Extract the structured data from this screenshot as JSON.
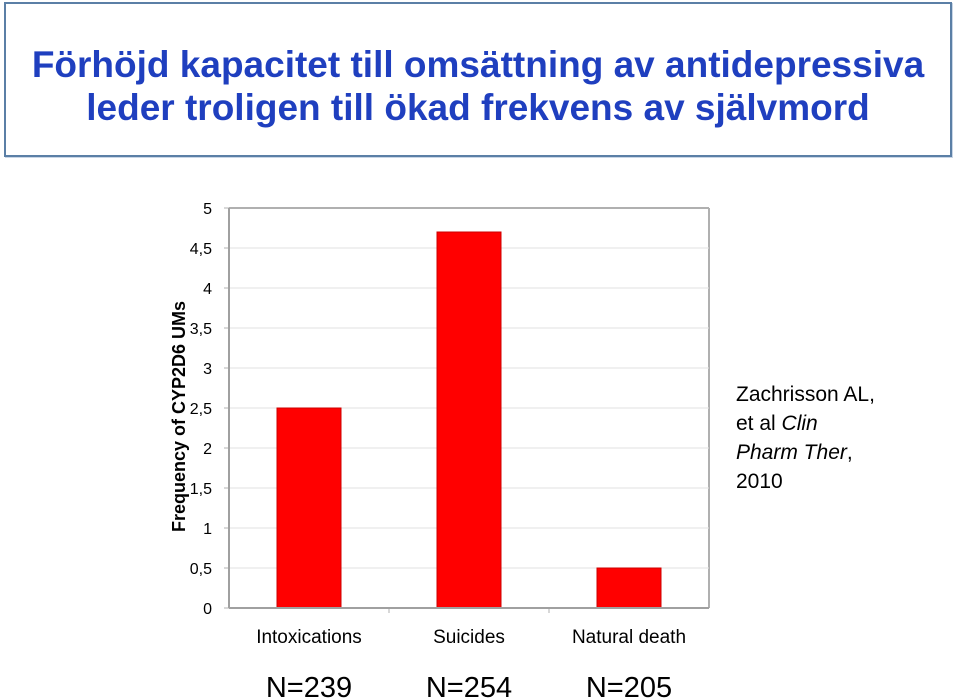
{
  "header": {
    "title_line1": "Förhöjd kapacitet till omsättning av antidepressiva",
    "title_line2": "leder troligen till ökad frekvens av självmord"
  },
  "chart_data": {
    "type": "bar",
    "title": "",
    "xlabel": "",
    "ylabel": "Frequency of CYP2D6 UMs",
    "categories": [
      "Intoxications",
      "Suicides",
      "Natural death"
    ],
    "values": [
      2.5,
      4.7,
      0.5
    ],
    "sample_sizes": [
      "N=239",
      "N=254",
      "N=205"
    ],
    "ylim": [
      0,
      5
    ],
    "yticks": [
      "0",
      "0,5",
      "1",
      "1,5",
      "2",
      "2,5",
      "3",
      "3,5",
      "4",
      "4,5",
      "5"
    ],
    "bar_color": "#ff0000",
    "grid": true
  },
  "citation": {
    "line1": "Zachrisson AL,",
    "line2_prefix": "et al ",
    "line2_italic": "Clin",
    "line3_italic": "Pharm Ther",
    "line3_suffix": ",",
    "line4": "2010"
  }
}
